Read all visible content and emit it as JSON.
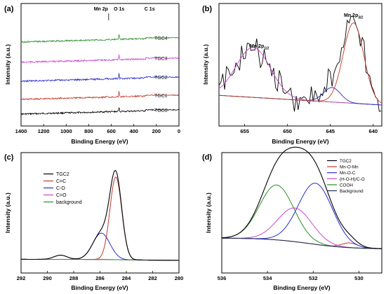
{
  "chart_data": [
    {
      "panel": "(a)",
      "type": "line",
      "xlabel": "Binding Energy (eV)",
      "ylabel": "Intensity (a.u.)",
      "xlim": [
        1400,
        0
      ],
      "xticks": [
        1400,
        1200,
        1000,
        800,
        600,
        400,
        200,
        0
      ],
      "series": [
        {
          "name": "TGC0",
          "color": "#000000",
          "offset": 0
        },
        {
          "name": "TGC1",
          "color": "#c0392b",
          "offset": 1
        },
        {
          "name": "TGC2",
          "color": "#2a2ad0",
          "offset": 2
        },
        {
          "name": "TGC3",
          "color": "#cc44cc",
          "offset": 3
        },
        {
          "name": "TGC4",
          "color": "#2e8b2e",
          "offset": 4
        }
      ],
      "peaks": [
        {
          "x": 284.8,
          "height": 1.0
        },
        {
          "x": 531.5,
          "height": 0.35
        },
        {
          "x": 642.0,
          "height": 0.06
        }
      ],
      "annotations": [
        {
          "text": "Mn 2p",
          "x": 642
        },
        {
          "text": "O 1s",
          "x": 531
        },
        {
          "text": "C 1s",
          "x": 285
        }
      ]
    },
    {
      "panel": "(b)",
      "type": "line",
      "xlabel": "Binding Energy (eV)",
      "ylabel": "Intensity (a.u.)",
      "xlim": [
        658,
        639
      ],
      "xticks": [
        655,
        650,
        645,
        640
      ],
      "peaks": [
        {
          "name": "Mn 2p1/2",
          "center": 654.0,
          "height": 0.62,
          "width": 2.0,
          "color": "#cc44cc"
        },
        {
          "name": "Mn 2p3/2 (minor)",
          "center": 644.8,
          "height": 0.18,
          "width": 1.0,
          "color": "#2a2ad0"
        },
        {
          "name": "Mn 2p3/2",
          "center": 642.3,
          "height": 1.0,
          "width": 1.2,
          "color": "#c0392b"
        }
      ],
      "background": {
        "start": 0.12,
        "end": 0.0,
        "color": "#2e8b2e"
      },
      "annotations": [
        {
          "label": "Mn 2p",
          "sub": "1/2"
        },
        {
          "label": "Mn 2p",
          "sub": "3/2"
        }
      ]
    },
    {
      "panel": "(c)",
      "type": "line",
      "xlabel": "Binding Energy (eV)",
      "ylabel": "Intensity (a.u.)",
      "xlim": [
        292,
        280
      ],
      "xticks": [
        292,
        290,
        288,
        286,
        284,
        282,
        280
      ],
      "legend": [
        "TGC2",
        "C=C",
        "C-O",
        "C=O",
        "background"
      ],
      "peaks": [
        {
          "name": "C=C",
          "center": 284.8,
          "height": 1.0,
          "width": 0.45,
          "color": "#c0392b"
        },
        {
          "name": "C-O",
          "center": 285.9,
          "height": 0.32,
          "width": 0.65,
          "color": "#2a2ad0"
        },
        {
          "name": "C=O",
          "center": 289.0,
          "height": 0.05,
          "width": 0.5,
          "color": "#cc44cc"
        }
      ],
      "envelope_color": "#000000",
      "background_color": "#2e8b2e"
    },
    {
      "panel": "(d)",
      "type": "line",
      "xlabel": "Binding Energy (eV)",
      "ylabel": "Intensity (a.u.)",
      "xlim": [
        536,
        529
      ],
      "xticks": [
        536,
        534,
        532,
        530
      ],
      "legend": [
        "TGC2",
        "Mn-O-Mn",
        "Mn-O-C",
        "(H-O-H)/C-O",
        "COOH",
        "Background"
      ],
      "peaks": [
        {
          "name": "Mn-O-Mn",
          "center": 530.4,
          "height": 0.06,
          "width": 0.35,
          "color": "#c0392b"
        },
        {
          "name": "Mn-O-C",
          "center": 531.9,
          "height": 0.78,
          "width": 0.75,
          "color": "#2a2ad0"
        },
        {
          "name": "(H-O-H)/C-O",
          "center": 532.8,
          "height": 0.43,
          "width": 0.75,
          "color": "#cc44cc"
        },
        {
          "name": "COOH",
          "center": 533.6,
          "height": 0.7,
          "width": 0.75,
          "color": "#2e8b2e"
        }
      ],
      "envelope_color": "#000000",
      "background_color": "#1f2a55"
    }
  ]
}
